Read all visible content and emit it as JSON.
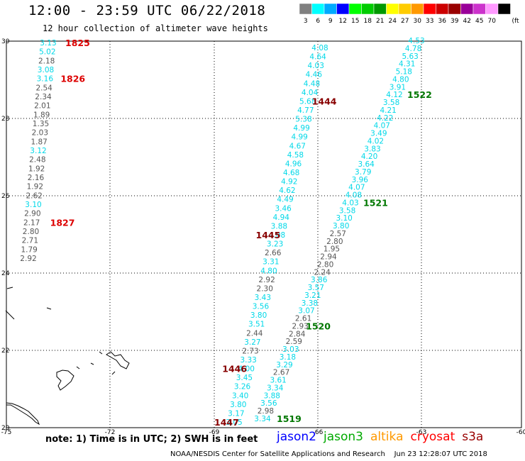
{
  "header": {
    "title": "12:00 - 23:59 UTC 06/22/2018",
    "subtitle": "12 hour collection of altimeter wave heights"
  },
  "legend": {
    "unit": "(ft)",
    "bins": [
      {
        "label": "3",
        "color": "#808080"
      },
      {
        "label": "6",
        "color": "#00ffff"
      },
      {
        "label": "9",
        "color": "#00aaff"
      },
      {
        "label": "12",
        "color": "#0000ff"
      },
      {
        "label": "15",
        "color": "#00ff00"
      },
      {
        "label": "18",
        "color": "#00cc00"
      },
      {
        "label": "21",
        "color": "#009900"
      },
      {
        "label": "24",
        "color": "#ffff00"
      },
      {
        "label": "27",
        "color": "#ffcc00"
      },
      {
        "label": "30",
        "color": "#ff9900"
      },
      {
        "label": "33",
        "color": "#ff0000"
      },
      {
        "label": "36",
        "color": "#cc0000"
      },
      {
        "label": "39",
        "color": "#990000"
      },
      {
        "label": "42",
        "color": "#990099"
      },
      {
        "label": "45",
        "color": "#cc33cc"
      },
      {
        "label": "70",
        "color": "#ff99ff"
      },
      {
        "label": "",
        "color": "#000000"
      }
    ]
  },
  "axes": {
    "lon_labels": [
      "-75",
      "-72",
      "-69",
      "-66",
      "-63",
      "-60"
    ],
    "lat_labels": [
      "20",
      "22",
      "24",
      "26",
      "28",
      "30"
    ]
  },
  "tracks": [
    {
      "id": "west",
      "heights": [
        "3.13",
        "5.02",
        "2.18",
        "3.08",
        "3.16",
        "2.54",
        "2.34",
        "2.01",
        "1.89",
        "1.35",
        "2.03",
        "1.87",
        "3.12",
        "2.48",
        "1.92",
        "2.16",
        "1.92",
        "2.62",
        "3.10",
        "2.90",
        "2.17",
        "2.80",
        "2.71",
        "1.79",
        "2.92"
      ],
      "times": [
        {
          "text": "1825",
          "color": "#dd0000",
          "index": 0
        },
        {
          "text": "1826",
          "color": "#dd0000",
          "index": 4
        },
        {
          "text": "1827",
          "color": "#dd0000",
          "index": 20
        }
      ]
    },
    {
      "id": "mid",
      "heights": [
        "4.08",
        "4.64",
        "4.03",
        "4.46",
        "4.48",
        "4.04",
        "5.68",
        "4.77",
        "5.38",
        "4.99",
        "4.99",
        "4.67",
        "4.58",
        "4.96",
        "4.68",
        "4.92",
        "4.62",
        "4.49",
        "3.46",
        "4.94",
        "3.88",
        "4.08",
        "3.23",
        "2.66",
        "3.31",
        "4.80",
        "2.92",
        "2.30",
        "3.43",
        "3.56",
        "3.80",
        "3.51",
        "2.44",
        "3.27",
        "2.73",
        "3.33",
        "4.00",
        "3.45",
        "3.26",
        "3.40",
        "3.80",
        "3.17",
        "3.05"
      ],
      "times": [
        {
          "text": "1444",
          "color": "#880000",
          "index": 6
        },
        {
          "text": "1445",
          "color": "#880000",
          "index": 21
        },
        {
          "text": "1446",
          "color": "#880000",
          "index": 36
        },
        {
          "text": "1447",
          "color": "#880000",
          "index": 42
        }
      ]
    },
    {
      "id": "east",
      "heights": [
        "4.53",
        "4.78",
        "5.63",
        "4.31",
        "5.18",
        "4.80",
        "3.91",
        "4.12",
        "3.58",
        "4.21",
        "4.22",
        "4.07",
        "3.49",
        "4.02",
        "3.83",
        "4.20",
        "3.64",
        "3.79",
        "3.96",
        "4.07",
        "4.08",
        "4.03",
        "3.58",
        "3.10",
        "3.80",
        "2.57",
        "2.80",
        "1.95",
        "2.94",
        "2.80",
        "2.24",
        "3.86",
        "3.57",
        "3.21",
        "3.38",
        "3.07",
        "2.61",
        "2.93",
        "2.84",
        "2.59",
        "3.03",
        "3.18",
        "3.29",
        "2.67",
        "3.61",
        "3.34",
        "3.88",
        "3.56",
        "2.98",
        "3.34"
      ],
      "times": [
        {
          "text": "1522",
          "color": "#007700",
          "index": 7
        },
        {
          "text": "1521",
          "color": "#007700",
          "index": 21
        },
        {
          "text": "1520",
          "color": "#007700",
          "index": 37
        },
        {
          "text": "1519",
          "color": "#007700",
          "index": 49
        }
      ]
    }
  ],
  "footer": {
    "note": "note: 1) Time is in UTC; 2) SWH is in feet",
    "satellites": [
      {
        "name": "jason2",
        "color": "#0000ff"
      },
      {
        "name": "jason3",
        "color": "#00aa00"
      },
      {
        "name": "altika",
        "color": "#ff9900"
      },
      {
        "name": "cryosat",
        "color": "#ff0000"
      },
      {
        "name": "s3a",
        "color": "#990000"
      }
    ],
    "credit": "NOAA/NESDIS Center for Satellite Applications and Research    Jun 23 12:28:07 UTC 2018"
  }
}
